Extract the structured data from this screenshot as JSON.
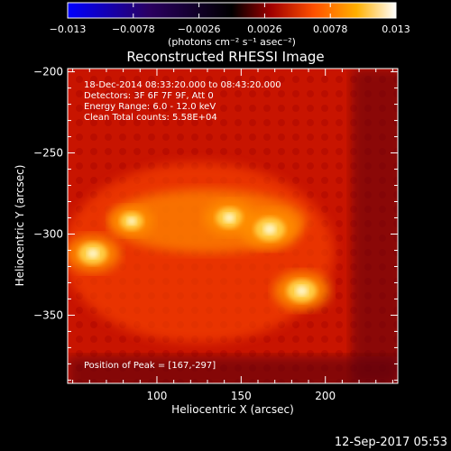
{
  "chart_data": {
    "type": "heatmap",
    "title": "Reconstructed RHESSI Image",
    "xlabel": "Heliocentric X (arcsec)",
    "ylabel": "Heliocentric Y (arcsec)",
    "xlim": [
      47,
      243
    ],
    "ylim": [
      -392,
      -198
    ],
    "x_ticks": [
      100,
      150,
      200
    ],
    "y_ticks": [
      -200,
      -250,
      -300,
      -350
    ],
    "colorbar": {
      "label": "(photons cm⁻² s⁻¹ asec⁻²)",
      "range": [
        -0.013,
        0.013
      ],
      "tick_labels": [
        "−0.013",
        "−0.0078",
        "−0.0026",
        "0.0026",
        "0.0078",
        "0.013"
      ],
      "colors": [
        "#0000ff",
        "#000000",
        "#b00000",
        "#ff7a00",
        "#ffd000",
        "#ffffff"
      ]
    },
    "annotations": [
      "18-Dec-2014 08:33:20.000 to 08:43:20.000",
      "Detectors: 3F 6F 7F 9F, Att 0",
      "Energy Range: 6.0 - 12.0 keV",
      "Clean    Total counts: 5.58E+04"
    ],
    "peak_label": "Position of Peak = [167,-297]",
    "peak": [
      167,
      -297
    ],
    "sources": [
      {
        "x": 62,
        "y": -312,
        "intensity": 0.012
      },
      {
        "x": 85,
        "y": -292,
        "intensity": 0.009
      },
      {
        "x": 143,
        "y": -290,
        "intensity": 0.011
      },
      {
        "x": 167,
        "y": -297,
        "intensity": 0.013
      },
      {
        "x": 186,
        "y": -335,
        "intensity": 0.0125
      }
    ]
  },
  "footer": {
    "timestamp": "12-Sep-2017 05:53"
  }
}
